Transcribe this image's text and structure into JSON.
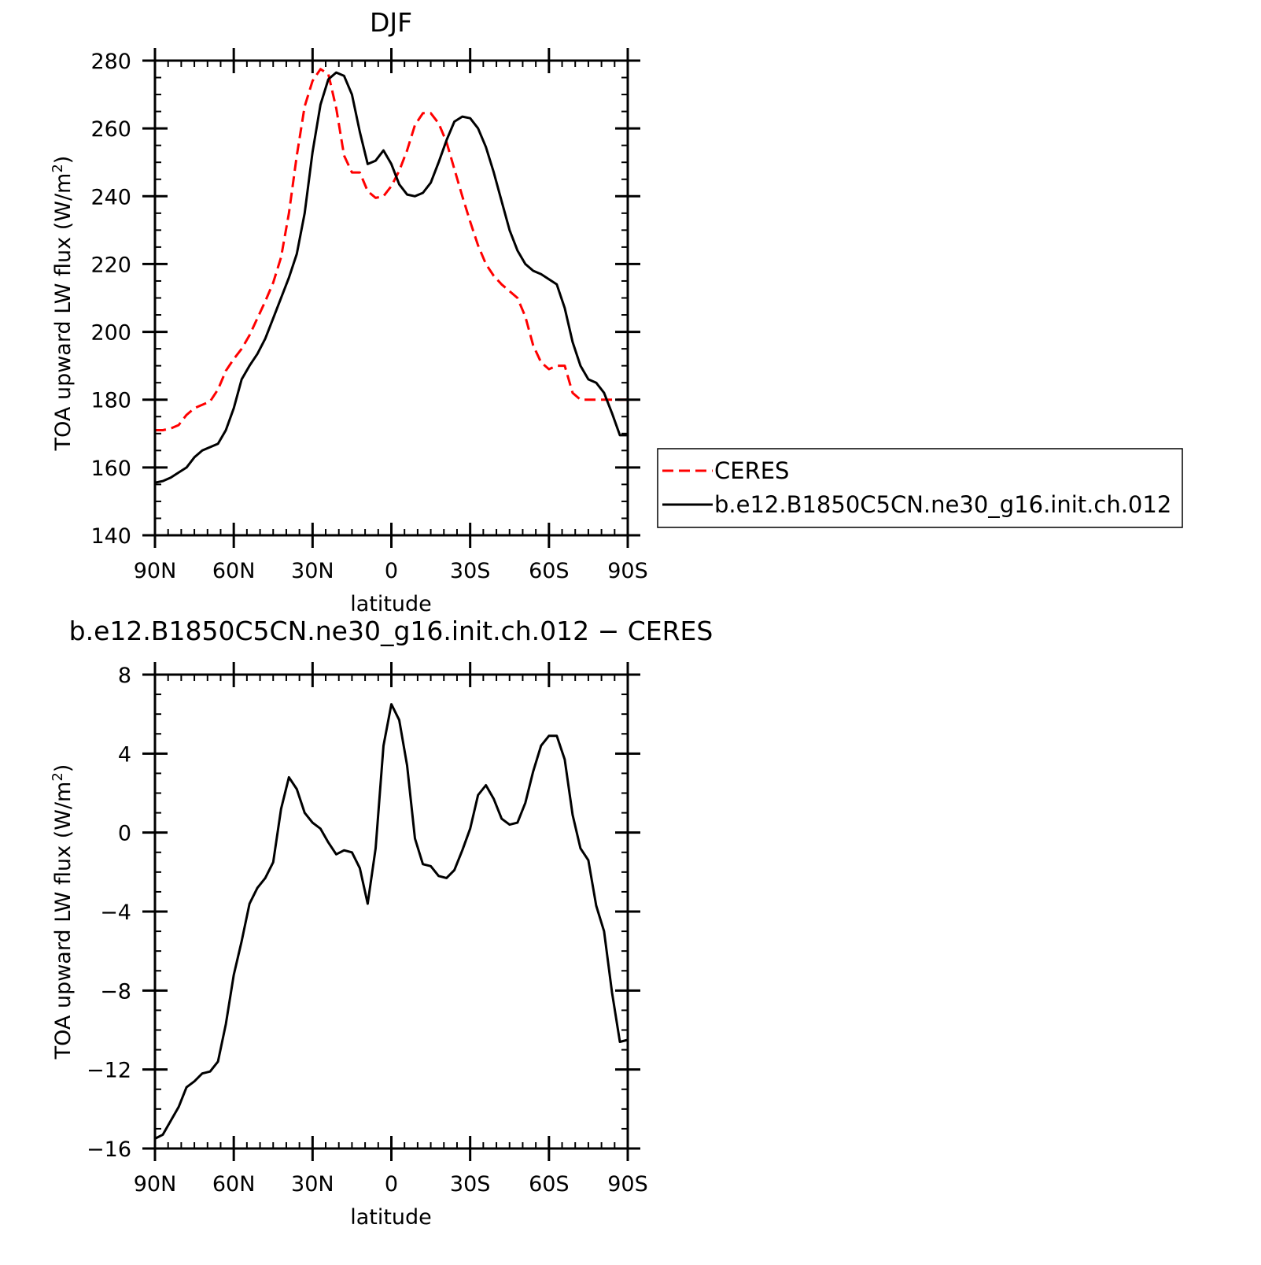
{
  "chart_data": [
    {
      "type": "line",
      "title": "DJF",
      "xlabel": "latitude",
      "ylabel": "TOA upward LW flux (W/m²)",
      "ylabel_base": "TOA upward LW flux (W/m",
      "ylabel_sup": "2",
      "ylabel_tail": ")",
      "xlim": [
        90,
        -90
      ],
      "ylim": [
        140,
        280
      ],
      "xticks": [
        {
          "value": 90,
          "label": "90N"
        },
        {
          "value": 60,
          "label": "60N"
        },
        {
          "value": 30,
          "label": "30N"
        },
        {
          "value": 0,
          "label": "0"
        },
        {
          "value": -30,
          "label": "30S"
        },
        {
          "value": -60,
          "label": "60S"
        },
        {
          "value": -90,
          "label": "90S"
        }
      ],
      "yticks": [
        {
          "value": 140,
          "label": "140"
        },
        {
          "value": 160,
          "label": "160"
        },
        {
          "value": 180,
          "label": "180"
        },
        {
          "value": 200,
          "label": "200"
        },
        {
          "value": 220,
          "label": "220"
        },
        {
          "value": 240,
          "label": "240"
        },
        {
          "value": 260,
          "label": "260"
        },
        {
          "value": 280,
          "label": "280"
        }
      ],
      "legend_position": "right",
      "series": [
        {
          "name": "CERES",
          "color": "#ff0000",
          "dash": "dashed",
          "x": [
            90,
            87,
            84,
            81,
            78,
            75,
            72,
            69,
            66,
            63,
            60,
            57,
            54,
            51,
            48,
            45,
            42,
            39,
            36,
            33,
            30,
            27,
            24,
            21,
            18,
            15,
            12,
            9,
            6,
            3,
            0,
            -3,
            -6,
            -9,
            -12,
            -15,
            -18,
            -21,
            -24,
            -27,
            -30,
            -33,
            -36,
            -39,
            -42,
            -45,
            -48,
            -51,
            -54,
            -57,
            -60,
            -63,
            -66,
            -69,
            -72,
            -75,
            -78,
            -81,
            -84,
            -87,
            -90
          ],
          "values": [
            171,
            171,
            171.5,
            172.5,
            175.5,
            177.5,
            178.5,
            179.5,
            183,
            188.5,
            192,
            195,
            199,
            204,
            209,
            214.5,
            222,
            235,
            252,
            266.5,
            274,
            277.5,
            276,
            266,
            252,
            247,
            247,
            241.5,
            239.5,
            240,
            243,
            247.5,
            253.5,
            261,
            264.5,
            264.5,
            261.5,
            256,
            248,
            240,
            232.5,
            225.5,
            220,
            216.5,
            214,
            212,
            210,
            204.5,
            196,
            191,
            189,
            190,
            190,
            182,
            180,
            180,
            180,
            180,
            180,
            180,
            180
          ]
        },
        {
          "name": "b.e12.B1850C5CN.ne30_g16.init.ch.012",
          "color": "#000000",
          "dash": "solid",
          "x": [
            90,
            87,
            84,
            81,
            78,
            75,
            72,
            69,
            66,
            63,
            60,
            57,
            54,
            51,
            48,
            45,
            42,
            39,
            36,
            33,
            30,
            27,
            24,
            21,
            18,
            15,
            12,
            9,
            6,
            3,
            0,
            -3,
            -6,
            -9,
            -12,
            -15,
            -18,
            -21,
            -24,
            -27,
            -30,
            -33,
            -36,
            -39,
            -42,
            -45,
            -48,
            -51,
            -54,
            -57,
            -60,
            -63,
            -66,
            -69,
            -72,
            -75,
            -78,
            -81,
            -84,
            -87,
            -90
          ],
          "values": [
            155.5,
            156,
            157,
            158.5,
            160,
            163,
            165,
            166,
            167,
            171,
            177.5,
            186,
            190,
            193.5,
            198,
            204,
            210,
            216,
            223,
            235,
            253,
            267,
            274.5,
            276.5,
            275.5,
            270,
            259,
            249.5,
            250.5,
            253.5,
            249.5,
            243.5,
            240.5,
            240,
            241,
            244,
            250,
            256.5,
            262,
            263.5,
            263,
            260,
            254.5,
            247,
            238.5,
            230,
            224,
            220,
            218,
            217,
            215.5,
            214,
            207,
            197,
            190,
            186,
            185,
            182,
            176,
            169.5,
            169.5
          ]
        }
      ]
    },
    {
      "type": "line",
      "title": "b.e12.B1850C5CN.ne30_g16.init.ch.012 − CERES",
      "xlabel": "latitude",
      "ylabel": "TOA upward LW flux (W/m²)",
      "ylabel_base": "TOA upward LW flux (W/m",
      "ylabel_sup": "2",
      "ylabel_tail": ")",
      "xlim": [
        90,
        -90
      ],
      "ylim": [
        -16,
        8
      ],
      "xticks": [
        {
          "value": 90,
          "label": "90N"
        },
        {
          "value": 60,
          "label": "60N"
        },
        {
          "value": 30,
          "label": "30N"
        },
        {
          "value": 0,
          "label": "0"
        },
        {
          "value": -30,
          "label": "30S"
        },
        {
          "value": -60,
          "label": "60S"
        },
        {
          "value": -90,
          "label": "90S"
        }
      ],
      "yticks": [
        {
          "value": -16,
          "label": "−16"
        },
        {
          "value": -12,
          "label": "−12"
        },
        {
          "value": -8,
          "label": "−8"
        },
        {
          "value": -4,
          "label": "−4"
        },
        {
          "value": 0,
          "label": "0"
        },
        {
          "value": 4,
          "label": "4"
        },
        {
          "value": 8,
          "label": "8"
        }
      ],
      "series": [
        {
          "name": "",
          "color": "#000000",
          "dash": "solid",
          "x": [
            90,
            87,
            84,
            81,
            78,
            75,
            72,
            69,
            66,
            63,
            60,
            57,
            54,
            51,
            48,
            45,
            42,
            39,
            36,
            33,
            30,
            27,
            24,
            21,
            18,
            15,
            12,
            9,
            6,
            3,
            0,
            -3,
            -6,
            -9,
            -12,
            -15,
            -18,
            -21,
            -24,
            -27,
            -30,
            -33,
            -36,
            -39,
            -42,
            -45,
            -48,
            -51,
            -54,
            -57,
            -60,
            -63,
            -66,
            -69,
            -72,
            -75,
            -78,
            -81,
            -84,
            -87,
            -90
          ],
          "values": [
            -15.5,
            -15.3,
            -14.6,
            -13.9,
            -12.9,
            -12.6,
            -12.2,
            -12.1,
            -11.6,
            -9.7,
            -7.2,
            -5.5,
            -3.6,
            -2.8,
            -2.3,
            -1.5,
            1.2,
            2.8,
            2.2,
            1.0,
            0.5,
            0.2,
            -0.5,
            -1.1,
            -0.9,
            -1.0,
            -1.8,
            -3.6,
            -0.8,
            4.4,
            6.5,
            5.7,
            3.4,
            -0.3,
            -1.6,
            -1.7,
            -2.2,
            -2.3,
            -1.9,
            -0.9,
            0.2,
            1.9,
            2.4,
            1.7,
            0.7,
            0.4,
            0.5,
            1.5,
            3.1,
            4.4,
            4.9,
            4.9,
            3.7,
            0.9,
            -0.8,
            -1.4,
            -3.7,
            -5.0,
            -8.1,
            -10.6,
            -10.5
          ]
        }
      ]
    }
  ]
}
